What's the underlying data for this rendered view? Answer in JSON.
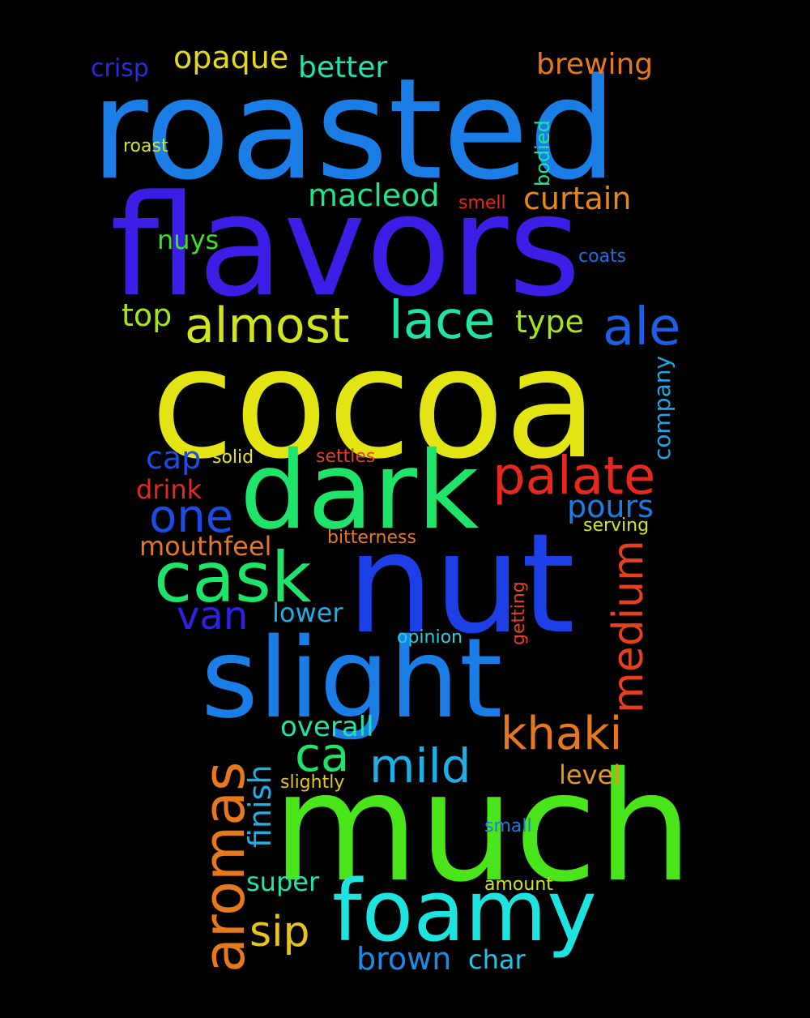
{
  "words": [
    {
      "text": "roasted",
      "color": "#1b7de6"
    },
    {
      "text": "flavors",
      "color": "#3c1fe6"
    },
    {
      "text": "cocoa",
      "color": "#e2e414"
    },
    {
      "text": "nut",
      "color": "#1c3fe6"
    },
    {
      "text": "dark",
      "color": "#1fe46a"
    },
    {
      "text": "much",
      "color": "#4ae41a"
    },
    {
      "text": "slight",
      "color": "#1b7de6"
    },
    {
      "text": "foamy",
      "color": "#1ee4e0"
    },
    {
      "text": "aromas",
      "color": "#e6781e"
    },
    {
      "text": "cask",
      "color": "#1fe46a"
    },
    {
      "text": "palate",
      "color": "#e6281e"
    },
    {
      "text": "almost",
      "color": "#d2e41c"
    },
    {
      "text": "lace",
      "color": "#1fe4a6"
    },
    {
      "text": "ale",
      "color": "#1c5fe6"
    },
    {
      "text": "one",
      "color": "#1c4ce6"
    },
    {
      "text": "medium",
      "color": "#e6401e"
    },
    {
      "text": "khaki",
      "color": "#e6781e"
    },
    {
      "text": "mild",
      "color": "#1faee6"
    },
    {
      "text": "ca",
      "color": "#1fe46a"
    },
    {
      "text": "van",
      "color": "#2a22e6"
    },
    {
      "text": "sip",
      "color": "#e6c41e"
    },
    {
      "text": "brown",
      "color": "#1b8ce6"
    },
    {
      "text": "brewing",
      "color": "#e6781e"
    },
    {
      "text": "better",
      "color": "#1fe4b0"
    },
    {
      "text": "opaque",
      "color": "#e6d81e"
    },
    {
      "text": "crisp",
      "color": "#2a2ae0"
    },
    {
      "text": "macleod",
      "color": "#1fe48a"
    },
    {
      "text": "curtain",
      "color": "#e6881e"
    },
    {
      "text": "type",
      "color": "#a6e41c"
    },
    {
      "text": "top",
      "color": "#a6e41c"
    },
    {
      "text": "nuys",
      "color": "#3ae41e"
    },
    {
      "text": "pours",
      "color": "#1b7de6"
    },
    {
      "text": "cap",
      "color": "#1c4ce6"
    },
    {
      "text": "company",
      "color": "#1fa6e6"
    },
    {
      "text": "finish",
      "color": "#1faee6"
    },
    {
      "text": "overall",
      "color": "#1fe4a6"
    },
    {
      "text": "lower",
      "color": "#1faee6"
    },
    {
      "text": "mouthfeel",
      "color": "#e6781e"
    },
    {
      "text": "drink",
      "color": "#e6281e"
    },
    {
      "text": "char",
      "color": "#1fc4e6"
    },
    {
      "text": "level",
      "color": "#e6981e"
    },
    {
      "text": "super",
      "color": "#1fe4b0"
    },
    {
      "text": "bodied",
      "color": "#1fe4a6"
    },
    {
      "text": "coats",
      "color": "#1b6de6"
    },
    {
      "text": "smell",
      "color": "#e6281e"
    },
    {
      "text": "roast",
      "color": "#d2e41c"
    },
    {
      "text": "solid",
      "color": "#e6e41e"
    },
    {
      "text": "settles",
      "color": "#e6401e"
    },
    {
      "text": "bitterness",
      "color": "#e6781e"
    },
    {
      "text": "serving",
      "color": "#d2e41c"
    },
    {
      "text": "getting",
      "color": "#e6401e"
    },
    {
      "text": "opinion",
      "color": "#1fd0e6"
    },
    {
      "text": "slightly",
      "color": "#e6c41e"
    },
    {
      "text": "small",
      "color": "#1b7de6"
    },
    {
      "text": "amount",
      "color": "#d2e41c"
    }
  ]
}
